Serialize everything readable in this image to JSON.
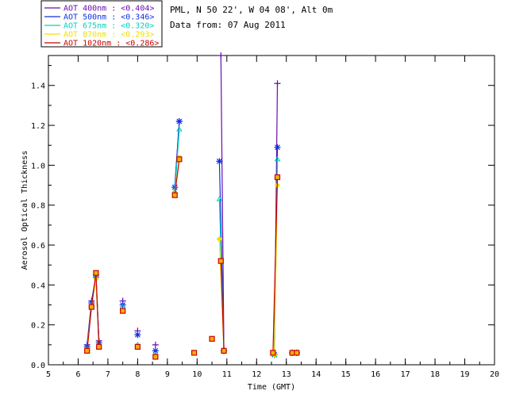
{
  "chart_data": {
    "type": "line",
    "station": "PML, N 50 22', W 04 08', Alt 0m",
    "date_label": "Data from: 07 Aug 2011",
    "xlabel": "Time (GMT)",
    "ylabel": "Aerosol Optical Thickness",
    "xlim": [
      5,
      20
    ],
    "ylim": [
      0,
      1.55
    ],
    "xticks": [
      5,
      6,
      7,
      8,
      9,
      10,
      11,
      12,
      13,
      14,
      15,
      16,
      17,
      18,
      19,
      20
    ],
    "yticks": [
      "0.0",
      "0.2",
      "0.4",
      "0.6",
      "0.8",
      "1.0",
      "1.2",
      "1.4"
    ],
    "grid": false,
    "legend_position": "top-left",
    "series": [
      {
        "name": "AOT  400nm : <0.404>",
        "color": "#6a0dad",
        "marker": "plus",
        "x": [
          6.3,
          6.45,
          6.6,
          6.7,
          7.5,
          8.0,
          8.6,
          9.25,
          9.4,
          10.8,
          10.9,
          12.6,
          12.7,
          13.2,
          13.35
        ],
        "y": [
          0.1,
          0.32,
          0.44,
          0.12,
          0.32,
          0.17,
          0.1,
          0.89,
          1.22,
          1.55,
          0.07,
          0.05,
          1.41,
          0.06,
          0.06
        ]
      },
      {
        "name": "AOT  500nm : <0.346>",
        "color": "#1030e0",
        "marker": "asterisk",
        "x": [
          6.3,
          6.45,
          6.6,
          6.7,
          7.5,
          8.0,
          8.6,
          9.25,
          9.4,
          10.75,
          10.9,
          12.6,
          12.7,
          13.2,
          13.35
        ],
        "y": [
          0.09,
          0.31,
          0.45,
          0.11,
          0.3,
          0.15,
          0.07,
          0.89,
          1.22,
          1.02,
          0.07,
          0.05,
          1.09,
          0.06,
          0.06
        ]
      },
      {
        "name": "AOT  675nm : <0.320>",
        "color": "#00d0c0",
        "marker": "triangle",
        "x": [
          6.3,
          6.45,
          6.6,
          6.7,
          7.5,
          8.0,
          8.6,
          9.25,
          9.4,
          10.75,
          10.9,
          12.6,
          12.7,
          13.2,
          13.35
        ],
        "y": [
          0.08,
          0.3,
          0.44,
          0.09,
          0.29,
          0.1,
          0.05,
          0.87,
          1.18,
          0.83,
          0.07,
          0.05,
          1.03,
          0.06,
          0.06
        ]
      },
      {
        "name": "AOT  870nm : <0.293>",
        "color": "#f0e000",
        "marker": "diamond",
        "x": [
          6.3,
          6.45,
          6.6,
          6.7,
          7.5,
          8.0,
          8.6,
          9.25,
          9.4,
          10.75,
          10.9,
          12.6,
          12.7,
          13.2,
          13.35
        ],
        "y": [
          0.07,
          0.29,
          0.43,
          0.09,
          0.27,
          0.09,
          0.04,
          0.86,
          1.04,
          0.63,
          0.07,
          0.05,
          0.9,
          0.06,
          0.06
        ]
      },
      {
        "name": "AOT 1020nm : <0.286>",
        "color": "#cc0000",
        "marker": "square",
        "x": [
          6.3,
          6.45,
          6.6,
          6.7,
          7.5,
          8.0,
          8.6,
          9.25,
          9.4,
          9.9,
          10.5,
          10.8,
          10.9,
          12.55,
          12.7,
          13.2,
          13.35
        ],
        "y": [
          0.07,
          0.29,
          0.46,
          0.09,
          0.27,
          0.09,
          0.04,
          0.85,
          1.03,
          0.06,
          0.13,
          0.52,
          0.07,
          0.06,
          0.94,
          0.06,
          0.06
        ]
      }
    ]
  }
}
